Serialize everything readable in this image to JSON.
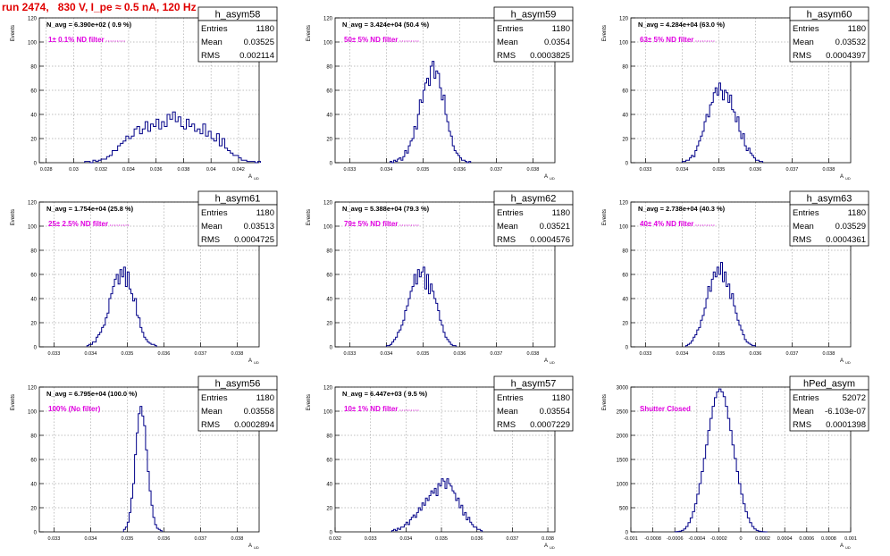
{
  "page_title": "run 2474,   830 V, I_pe ≈ 0.5 nA, 120 Hz",
  "axis": {
    "ylabel": "Events",
    "xlabel": "A",
    "xlabel_sub": "UD"
  },
  "colors": {
    "title": "#e00000",
    "magenta": "#e000e0",
    "line": "#000088",
    "grid": "#aaaaaa"
  },
  "chart_data": [
    {
      "type": "histogram",
      "name": "h_asym58",
      "nline": "N_avg = 6.390e+02 ( 0.9 %)",
      "filter": "1± 0.1% ND filter",
      "filter_dots": true,
      "stats": {
        "labels": [
          "Entries",
          "Mean",
          "RMS"
        ],
        "values": [
          "1180",
          "0.03525",
          "0.002114"
        ]
      },
      "xlim": [
        0.0275,
        0.0435
      ],
      "ylim": [
        0,
        120
      ],
      "yticks": [
        0,
        20,
        40,
        60,
        80,
        100,
        120
      ],
      "xticks": [
        0.028,
        0.03,
        0.032,
        0.034,
        0.036,
        0.038,
        0.04,
        0.042
      ],
      "xtick_labels": [
        "0.028",
        "0.03",
        "0.032",
        "0.034",
        "0.036",
        "0.038",
        "0.04",
        "0.042"
      ],
      "bins": {
        "start": 0.0308,
        "width": 0.0002,
        "values": [
          1,
          1,
          0,
          2,
          1,
          2,
          3,
          3,
          5,
          6,
          10,
          10,
          14,
          16,
          18,
          22,
          20,
          22,
          28,
          30,
          24,
          28,
          34,
          26,
          32,
          30,
          36,
          28,
          34,
          30,
          40,
          36,
          42,
          34,
          38,
          30,
          28,
          36,
          30,
          32,
          26,
          28,
          24,
          32,
          22,
          26,
          20,
          18,
          24,
          14,
          20,
          12,
          10,
          8,
          6,
          6,
          4,
          2,
          2,
          1,
          1,
          1,
          0,
          1
        ]
      }
    },
    {
      "type": "histogram",
      "name": "h_asym59",
      "nline": "N_avg = 3.424e+04 (50.4 %)",
      "filter": "50± 5% ND filter",
      "filter_dots": true,
      "stats": {
        "labels": [
          "Entries",
          "Mean",
          "RMS"
        ],
        "values": [
          "1180",
          "0.0354",
          "0.0003825"
        ]
      },
      "xlim": [
        0.0326,
        0.0386
      ],
      "ylim": [
        0,
        120
      ],
      "yticks": [
        0,
        20,
        40,
        60,
        80,
        100,
        120
      ],
      "xticks": [
        0.033,
        0.034,
        0.035,
        0.036,
        0.037,
        0.038
      ],
      "xtick_labels": [
        "0.033",
        "0.034",
        "0.035",
        "0.036",
        "0.037",
        "0.038"
      ],
      "bins": {
        "start": 0.0341,
        "width": 5e-05,
        "values": [
          1,
          0,
          2,
          1,
          3,
          4,
          2,
          5,
          10,
          8,
          14,
          18,
          20,
          30,
          28,
          40,
          52,
          50,
          60,
          66,
          70,
          64,
          80,
          84,
          70,
          76,
          74,
          62,
          52,
          56,
          40,
          34,
          26,
          22,
          14,
          10,
          8,
          6,
          4,
          2,
          2,
          1,
          0,
          1
        ]
      }
    },
    {
      "type": "histogram",
      "name": "h_asym60",
      "nline": "N_avg = 4.284e+04 (63.0 %)",
      "filter": "63± 5% ND filter",
      "filter_dots": true,
      "stats": {
        "labels": [
          "Entries",
          "Mean",
          "RMS"
        ],
        "values": [
          "1180",
          "0.03532",
          "0.0004397"
        ]
      },
      "xlim": [
        0.0326,
        0.0386
      ],
      "ylim": [
        0,
        120
      ],
      "yticks": [
        0,
        20,
        40,
        60,
        80,
        100,
        120
      ],
      "xticks": [
        0.033,
        0.034,
        0.035,
        0.036,
        0.037,
        0.038
      ],
      "xtick_labels": [
        "0.033",
        "0.034",
        "0.035",
        "0.036",
        "0.037",
        "0.038"
      ],
      "bins": {
        "start": 0.034,
        "width": 5e-05,
        "values": [
          1,
          1,
          2,
          2,
          4,
          6,
          5,
          10,
          14,
          18,
          22,
          26,
          34,
          40,
          38,
          48,
          50,
          58,
          62,
          56,
          66,
          60,
          52,
          60,
          58,
          50,
          56,
          44,
          42,
          34,
          38,
          26,
          20,
          24,
          14,
          10,
          12,
          8,
          6,
          4,
          2,
          2,
          1,
          1
        ]
      }
    },
    {
      "type": "histogram",
      "name": "h_asym61",
      "nline": "N_avg = 1.754e+04 (25.8 %)",
      "filter": "25± 2.5% ND filter",
      "filter_dots": true,
      "stats": {
        "labels": [
          "Entries",
          "Mean",
          "RMS"
        ],
        "values": [
          "1180",
          "0.03513",
          "0.0004725"
        ]
      },
      "xlim": [
        0.0326,
        0.0386
      ],
      "ylim": [
        0,
        120
      ],
      "yticks": [
        0,
        20,
        40,
        60,
        80,
        100,
        120
      ],
      "xticks": [
        0.033,
        0.034,
        0.035,
        0.036,
        0.037,
        0.038
      ],
      "xtick_labels": [
        "0.033",
        "0.034",
        "0.035",
        "0.036",
        "0.037",
        "0.038"
      ],
      "bins": {
        "start": 0.0339,
        "width": 5e-05,
        "values": [
          1,
          2,
          2,
          4,
          4,
          8,
          10,
          12,
          16,
          18,
          24,
          28,
          40,
          44,
          50,
          56,
          60,
          52,
          64,
          58,
          66,
          50,
          62,
          48,
          44,
          38,
          40,
          26,
          24,
          16,
          12,
          8,
          6,
          4,
          3,
          2,
          2,
          1
        ]
      }
    },
    {
      "type": "histogram",
      "name": "h_asym62",
      "nline": "N_avg = 5.388e+04 (79.3 %)",
      "filter": "79± 5% ND filter",
      "filter_dots": true,
      "stats": {
        "labels": [
          "Entries",
          "Mean",
          "RMS"
        ],
        "values": [
          "1180",
          "0.03521",
          "0.0004576"
        ]
      },
      "xlim": [
        0.0326,
        0.0386
      ],
      "ylim": [
        0,
        120
      ],
      "yticks": [
        0,
        20,
        40,
        60,
        80,
        100,
        120
      ],
      "xticks": [
        0.033,
        0.034,
        0.035,
        0.036,
        0.037,
        0.038
      ],
      "xtick_labels": [
        "0.033",
        "0.034",
        "0.035",
        "0.036",
        "0.037",
        "0.038"
      ],
      "bins": {
        "start": 0.034,
        "width": 5e-05,
        "values": [
          1,
          1,
          2,
          4,
          6,
          8,
          12,
          14,
          18,
          22,
          30,
          34,
          40,
          46,
          50,
          60,
          52,
          64,
          58,
          62,
          66,
          48,
          60,
          44,
          52,
          46,
          40,
          36,
          30,
          22,
          18,
          12,
          8,
          6,
          4,
          2,
          1,
          1
        ]
      }
    },
    {
      "type": "histogram",
      "name": "h_asym63",
      "nline": "N_avg = 2.738e+04 (40.3 %)",
      "filter": "40± 4% ND filter",
      "filter_dots": true,
      "stats": {
        "labels": [
          "Entries",
          "Mean",
          "RMS"
        ],
        "values": [
          "1180",
          "0.03529",
          "0.0004361"
        ]
      },
      "xlim": [
        0.0326,
        0.0386
      ],
      "ylim": [
        0,
        120
      ],
      "yticks": [
        0,
        20,
        40,
        60,
        80,
        100,
        120
      ],
      "xticks": [
        0.033,
        0.034,
        0.035,
        0.036,
        0.037,
        0.038
      ],
      "xtick_labels": [
        "0.033",
        "0.034",
        "0.035",
        "0.036",
        "0.037",
        "0.038"
      ],
      "bins": {
        "start": 0.0341,
        "width": 5e-05,
        "values": [
          1,
          2,
          3,
          5,
          8,
          10,
          14,
          16,
          22,
          26,
          32,
          40,
          50,
          46,
          56,
          62,
          58,
          66,
          60,
          70,
          54,
          62,
          50,
          52,
          40,
          44,
          34,
          28,
          22,
          18,
          14,
          10,
          6,
          4,
          3,
          2,
          1,
          1
        ]
      }
    },
    {
      "type": "histogram",
      "name": "h_asym56",
      "nline": "N_avg = 6.795e+04 (100.0 %)",
      "filter": "100% (No filter)",
      "filter_dots": false,
      "stats": {
        "labels": [
          "Entries",
          "Mean",
          "RMS"
        ],
        "values": [
          "1180",
          "0.03558",
          "0.0002894"
        ]
      },
      "xlim": [
        0.0326,
        0.0386
      ],
      "ylim": [
        0,
        120
      ],
      "yticks": [
        0,
        20,
        40,
        60,
        80,
        100,
        120
      ],
      "xticks": [
        0.033,
        0.034,
        0.035,
        0.036,
        0.037,
        0.038
      ],
      "xtick_labels": [
        "0.033",
        "0.034",
        "0.035",
        "0.036",
        "0.037",
        "0.038"
      ],
      "bins": {
        "start": 0.0349,
        "width": 5e-05,
        "values": [
          2,
          4,
          8,
          16,
          28,
          40,
          64,
          82,
          98,
          104,
          96,
          88,
          68,
          50,
          34,
          22,
          12,
          6,
          3,
          2,
          1
        ]
      }
    },
    {
      "type": "histogram",
      "name": "h_asym57",
      "nline": "N_avg = 6.447e+03 ( 9.5 %)",
      "filter": "10± 1% ND filter",
      "filter_dots": true,
      "stats": {
        "labels": [
          "Entries",
          "Mean",
          "RMS"
        ],
        "values": [
          "1180",
          "0.03554",
          "0.0007229"
        ]
      },
      "xlim": [
        0.032,
        0.0382
      ],
      "ylim": [
        0,
        120
      ],
      "yticks": [
        0,
        20,
        40,
        60,
        80,
        100,
        120
      ],
      "xticks": [
        0.032,
        0.033,
        0.034,
        0.035,
        0.036,
        0.037,
        0.038
      ],
      "xtick_labels": [
        "0.032",
        "0.033",
        "0.034",
        "0.035",
        "0.036",
        "0.037",
        "0.038"
      ],
      "bins": {
        "start": 0.0336,
        "width": 5e-05,
        "values": [
          1,
          2,
          1,
          3,
          2,
          4,
          4,
          6,
          8,
          6,
          10,
          12,
          14,
          12,
          16,
          20,
          18,
          24,
          22,
          28,
          26,
          30,
          34,
          32,
          36,
          30,
          40,
          38,
          44,
          42,
          36,
          44,
          40,
          38,
          34,
          32,
          26,
          28,
          20,
          22,
          14,
          16,
          10,
          12,
          8,
          6,
          4,
          4,
          2,
          2,
          1
        ]
      }
    },
    {
      "type": "histogram",
      "name": "hPed_asym",
      "nline": "",
      "filter": "Shutter Closed",
      "filter_dots": false,
      "stats": {
        "labels": [
          "Entries",
          "Mean",
          "RMS"
        ],
        "values": [
          "52072",
          "-6.103e-07",
          "0.0001398"
        ]
      },
      "xlim": [
        -0.001,
        0.001
      ],
      "ylim": [
        0,
        3000
      ],
      "yticks": [
        0,
        500,
        1000,
        1500,
        2000,
        2500,
        3000
      ],
      "xticks": [
        -0.001,
        -0.0008,
        -0.0006,
        -0.0004,
        -0.0002,
        0,
        0.0002,
        0.0004,
        0.0006,
        0.0008,
        0.001
      ],
      "xtick_labels": [
        "-0.001",
        "-0.0008",
        "-0.0006",
        "-0.0004",
        "-0.0002",
        "0",
        "0.0002",
        "0.0004",
        "0.0006",
        "0.0008",
        "0.001"
      ],
      "bins": {
        "start": -0.0006,
        "width": 2e-05,
        "values": [
          2,
          6,
          14,
          30,
          60,
          110,
          190,
          290,
          420,
          580,
          780,
          1000,
          1250,
          1520,
          1800,
          2100,
          2350,
          2600,
          2780,
          2900,
          2960,
          2900,
          2800,
          2600,
          2350,
          2100,
          1800,
          1520,
          1250,
          1000,
          780,
          580,
          420,
          290,
          190,
          110,
          60,
          30,
          14,
          6,
          2,
          1
        ]
      }
    }
  ]
}
